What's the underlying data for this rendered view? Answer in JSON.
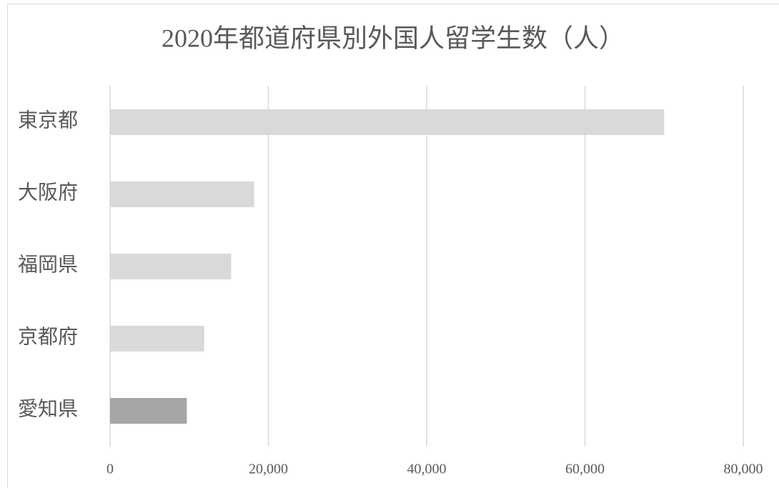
{
  "chart_data": {
    "type": "bar",
    "orientation": "horizontal",
    "title": "2020年都道府県別外国人留学生数（人）",
    "categories": [
      "東京都",
      "大阪府",
      "福岡県",
      "京都府",
      "愛知県"
    ],
    "values": [
      70000,
      18200,
      15300,
      11900,
      9700
    ],
    "colors": [
      "#d9d9d9",
      "#d9d9d9",
      "#d9d9d9",
      "#d9d9d9",
      "#a6a6a6"
    ],
    "xlim": [
      0,
      80000
    ],
    "xticks": [
      0,
      {
        "value": 20000,
        "label": "20,000"
      },
      {
        "value": 40000,
        "label": "40,000"
      },
      {
        "value": 60000,
        "label": "60,000"
      },
      {
        "value": 80000,
        "label": "80,000"
      }
    ],
    "grid": true
  }
}
